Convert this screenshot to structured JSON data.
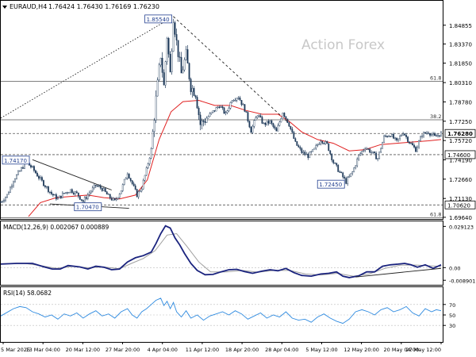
{
  "header": {
    "symbol": "EURAUD,H4",
    "ohlc": "1.76424 1.76430 1.76169 1.76230"
  },
  "watermark": "Action Forex",
  "chart_data": [
    {
      "type": "candlestick",
      "name": "price",
      "ylim": [
        1.6957,
        1.866
      ],
      "y_ticks": [
        "1.84855",
        "1.83370",
        "1.81850",
        "1.80310",
        "1.78780",
        "1.77250",
        "1.75720",
        "1.74190",
        "1.72660",
        "1.71130",
        "1.69640"
      ],
      "x_ticks": [
        "5 Mar 2025",
        "13 Mar 04:00",
        "20 Mar 12:00",
        "27 Mar 20:00",
        "4 Apr 04:00",
        "11 Apr 12:00",
        "18 Apr 20:00",
        "28 Apr 04:00",
        "5 May 12:00",
        "12 May 20:00",
        "20 May 04:00",
        "27 May 12:00"
      ],
      "close_path": [
        [
          0,
          1.7085
        ],
        [
          8,
          1.714
        ],
        [
          16,
          1.726
        ],
        [
          24,
          1.733
        ],
        [
          32,
          1.7402
        ],
        [
          40,
          1.7352
        ],
        [
          48,
          1.728
        ],
        [
          56,
          1.7215
        ],
        [
          64,
          1.715
        ],
        [
          72,
          1.711
        ],
        [
          80,
          1.7155
        ],
        [
          88,
          1.718
        ],
        [
          96,
          1.715
        ],
        [
          104,
          1.709
        ],
        [
          112,
          1.716
        ],
        [
          120,
          1.7215
        ],
        [
          128,
          1.719
        ],
        [
          136,
          1.713
        ],
        [
          144,
          1.709
        ],
        [
          152,
          1.718
        ],
        [
          160,
          1.732
        ],
        [
          166,
          1.723
        ],
        [
          172,
          1.714
        ],
        [
          178,
          1.72
        ],
        [
          184,
          1.734
        ],
        [
          190,
          1.75
        ],
        [
          196,
          1.79
        ],
        [
          202,
          1.825
        ],
        [
          206,
          1.8
        ],
        [
          210,
          1.84
        ],
        [
          214,
          1.81
        ],
        [
          218,
          1.8554
        ],
        [
          222,
          1.835
        ],
        [
          228,
          1.81
        ],
        [
          234,
          1.825
        ],
        [
          240,
          1.8
        ],
        [
          246,
          1.795
        ],
        [
          252,
          1.77
        ],
        [
          260,
          1.775
        ],
        [
          268,
          1.78
        ],
        [
          276,
          1.785
        ],
        [
          284,
          1.778
        ],
        [
          292,
          1.79
        ],
        [
          300,
          1.792
        ],
        [
          308,
          1.782
        ],
        [
          316,
          1.765
        ],
        [
          324,
          1.778
        ],
        [
          332,
          1.77
        ],
        [
          340,
          1.772
        ],
        [
          348,
          1.764
        ],
        [
          356,
          1.78
        ],
        [
          364,
          1.77
        ],
        [
          372,
          1.755
        ],
        [
          380,
          1.748
        ],
        [
          388,
          1.745
        ],
        [
          396,
          1.75
        ],
        [
          404,
          1.758
        ],
        [
          412,
          1.754
        ],
        [
          420,
          1.74
        ],
        [
          428,
          1.732
        ],
        [
          436,
          1.7245
        ],
        [
          444,
          1.732
        ],
        [
          452,
          1.745
        ],
        [
          460,
          1.752
        ],
        [
          468,
          1.748
        ],
        [
          476,
          1.743
        ],
        [
          484,
          1.76
        ],
        [
          492,
          1.762
        ],
        [
          500,
          1.756
        ],
        [
          508,
          1.764
        ],
        [
          516,
          1.756
        ],
        [
          524,
          1.75
        ],
        [
          532,
          1.762
        ],
        [
          540,
          1.764
        ],
        [
          548,
          1.76
        ],
        [
          556,
          1.7628
        ]
      ],
      "ema_path": [
        [
          35,
          1.697
        ],
        [
          50,
          1.708
        ],
        [
          70,
          1.712
        ],
        [
          90,
          1.713
        ],
        [
          110,
          1.714
        ],
        [
          130,
          1.712
        ],
        [
          150,
          1.711
        ],
        [
          170,
          1.714
        ],
        [
          185,
          1.726
        ],
        [
          200,
          1.758
        ],
        [
          215,
          1.78
        ],
        [
          230,
          1.788
        ],
        [
          250,
          1.789
        ],
        [
          270,
          1.785
        ],
        [
          290,
          1.785
        ],
        [
          310,
          1.781
        ],
        [
          330,
          1.778
        ],
        [
          350,
          1.778
        ],
        [
          365,
          1.772
        ],
        [
          380,
          1.764
        ],
        [
          400,
          1.758
        ],
        [
          420,
          1.755
        ],
        [
          440,
          1.749
        ],
        [
          460,
          1.75
        ],
        [
          480,
          1.754
        ],
        [
          500,
          1.755
        ],
        [
          520,
          1.756
        ],
        [
          540,
          1.757
        ],
        [
          556,
          1.758
        ]
      ],
      "trendlines": [
        {
          "kind": "dotted",
          "from": [
            0,
            1.775
          ],
          "to": [
            218,
            1.8554
          ]
        },
        {
          "kind": "dashed",
          "from": [
            218,
            1.8554
          ],
          "to": [
            362,
            1.772
          ]
        },
        {
          "kind": "solid",
          "from": [
            40,
            1.742
          ],
          "to": [
            140,
            1.718
          ]
        },
        {
          "kind": "solid",
          "from": [
            62,
            1.707
          ],
          "to": [
            162,
            1.7035
          ]
        }
      ],
      "levels": [
        {
          "label": "61.8",
          "value": 1.8042
        },
        {
          "label": "38.2",
          "value": 1.7736
        },
        {
          "label": "1.76280",
          "value": 1.7628
        },
        {
          "label": "1.74600",
          "value": 1.746
        },
        {
          "label": "1.70620",
          "value": 1.7062
        },
        {
          "label": "61.8",
          "value": 1.696
        }
      ],
      "annotations": [
        {
          "label": "1.85540",
          "x": 218,
          "y": 1.8554
        },
        {
          "label": "1.74170",
          "x": 32,
          "y": 1.7417
        },
        {
          "label": "1.70470",
          "x": 118,
          "y": 1.7047
        },
        {
          "label": "1.72450",
          "x": 436,
          "y": 1.7245
        }
      ],
      "current_price": "1.76280"
    },
    {
      "type": "line",
      "name": "macd",
      "title": "MACD(12,26,9) 0.002067 0.000889",
      "ylim": [
        -0.011,
        0.031
      ],
      "y_ticks": [
        "0.029123",
        "0.00",
        "-0.008901"
      ],
      "macd_path": [
        [
          0,
          0.0025
        ],
        [
          20,
          0.003
        ],
        [
          40,
          0.003
        ],
        [
          55,
          0.0005
        ],
        [
          65,
          -0.001
        ],
        [
          75,
          -0.001
        ],
        [
          85,
          0.0015
        ],
        [
          100,
          0.0005
        ],
        [
          110,
          -0.001
        ],
        [
          120,
          0.001
        ],
        [
          130,
          0.0003
        ],
        [
          140,
          -0.0015
        ],
        [
          150,
          -0.001
        ],
        [
          160,
          0.004
        ],
        [
          170,
          0.007
        ],
        [
          180,
          0.0085
        ],
        [
          190,
          0.011
        ],
        [
          196,
          0.017
        ],
        [
          202,
          0.024
        ],
        [
          208,
          0.0295
        ],
        [
          214,
          0.028
        ],
        [
          220,
          0.021
        ],
        [
          226,
          0.016
        ],
        [
          232,
          0.01
        ],
        [
          240,
          0.003
        ],
        [
          248,
          -0.002
        ],
        [
          258,
          -0.005
        ],
        [
          268,
          -0.0048
        ],
        [
          278,
          -0.003
        ],
        [
          288,
          -0.0015
        ],
        [
          298,
          -0.0012
        ],
        [
          308,
          -0.0028
        ],
        [
          318,
          -0.004
        ],
        [
          330,
          -0.0025
        ],
        [
          340,
          -0.0015
        ],
        [
          350,
          -0.0022
        ],
        [
          360,
          -0.0005
        ],
        [
          370,
          -0.0035
        ],
        [
          380,
          -0.0055
        ],
        [
          392,
          -0.006
        ],
        [
          404,
          -0.0045
        ],
        [
          414,
          -0.004
        ],
        [
          424,
          -0.003
        ],
        [
          432,
          -0.006
        ],
        [
          440,
          -0.007
        ],
        [
          452,
          -0.0058
        ],
        [
          462,
          -0.003
        ],
        [
          472,
          -0.003
        ],
        [
          482,
          0.001
        ],
        [
          492,
          0.002
        ],
        [
          502,
          0.0025
        ],
        [
          510,
          0.003
        ],
        [
          518,
          0.002
        ],
        [
          526,
          0.0003
        ],
        [
          536,
          0.002
        ],
        [
          546,
          -0.0005
        ],
        [
          556,
          0.002
        ]
      ],
      "signal_path": [
        [
          0,
          0.0028
        ],
        [
          30,
          0.003
        ],
        [
          50,
          0.0015
        ],
        [
          70,
          -0.0005
        ],
        [
          90,
          0.0008
        ],
        [
          110,
          0.0
        ],
        [
          130,
          0.0005
        ],
        [
          150,
          -0.0008
        ],
        [
          165,
          0.003
        ],
        [
          180,
          0.0065
        ],
        [
          195,
          0.012
        ],
        [
          210,
          0.023
        ],
        [
          222,
          0.024
        ],
        [
          235,
          0.015
        ],
        [
          250,
          0.004
        ],
        [
          265,
          -0.003
        ],
        [
          285,
          -0.003
        ],
        [
          305,
          -0.002
        ],
        [
          325,
          -0.0032
        ],
        [
          345,
          -0.002
        ],
        [
          365,
          -0.002
        ],
        [
          385,
          -0.0045
        ],
        [
          405,
          -0.0052
        ],
        [
          425,
          -0.004
        ],
        [
          445,
          -0.006
        ],
        [
          465,
          -0.0045
        ],
        [
          485,
          -0.0005
        ],
        [
          505,
          0.0018
        ],
        [
          525,
          0.0018
        ],
        [
          545,
          0.0012
        ],
        [
          556,
          0.0009
        ]
      ],
      "trendline": {
        "from": [
          448,
          -0.0066
        ],
        "to": [
          556,
          -0.0005
        ]
      }
    },
    {
      "type": "line",
      "name": "rsi",
      "title": "RSI(14) 58.0682",
      "ylim": [
        0,
        100
      ],
      "y_ticks": [
        "70",
        "50",
        "30"
      ],
      "rsi_path": [
        [
          0,
          48
        ],
        [
          8,
          55
        ],
        [
          16,
          62
        ],
        [
          24,
          66
        ],
        [
          32,
          64
        ],
        [
          40,
          56
        ],
        [
          48,
          52
        ],
        [
          56,
          46
        ],
        [
          64,
          50
        ],
        [
          72,
          42
        ],
        [
          80,
          52
        ],
        [
          88,
          48
        ],
        [
          96,
          54
        ],
        [
          104,
          44
        ],
        [
          112,
          52
        ],
        [
          120,
          58
        ],
        [
          128,
          48
        ],
        [
          136,
          52
        ],
        [
          144,
          44
        ],
        [
          152,
          56
        ],
        [
          160,
          62
        ],
        [
          166,
          50
        ],
        [
          172,
          44
        ],
        [
          178,
          56
        ],
        [
          184,
          62
        ],
        [
          190,
          70
        ],
        [
          196,
          78
        ],
        [
          202,
          82
        ],
        [
          206,
          68
        ],
        [
          210,
          76
        ],
        [
          214,
          62
        ],
        [
          218,
          74
        ],
        [
          222,
          56
        ],
        [
          228,
          46
        ],
        [
          234,
          58
        ],
        [
          240,
          44
        ],
        [
          248,
          50
        ],
        [
          256,
          40
        ],
        [
          264,
          48
        ],
        [
          272,
          52
        ],
        [
          280,
          56
        ],
        [
          288,
          50
        ],
        [
          296,
          58
        ],
        [
          304,
          52
        ],
        [
          312,
          42
        ],
        [
          320,
          48
        ],
        [
          328,
          54
        ],
        [
          336,
          44
        ],
        [
          344,
          50
        ],
        [
          352,
          46
        ],
        [
          360,
          56
        ],
        [
          368,
          44
        ],
        [
          376,
          40
        ],
        [
          384,
          42
        ],
        [
          392,
          36
        ],
        [
          400,
          46
        ],
        [
          408,
          52
        ],
        [
          416,
          44
        ],
        [
          424,
          38
        ],
        [
          432,
          34
        ],
        [
          440,
          42
        ],
        [
          448,
          56
        ],
        [
          456,
          60
        ],
        [
          464,
          56
        ],
        [
          472,
          50
        ],
        [
          480,
          60
        ],
        [
          488,
          64
        ],
        [
          496,
          56
        ],
        [
          504,
          60
        ],
        [
          512,
          66
        ],
        [
          520,
          54
        ],
        [
          528,
          48
        ],
        [
          536,
          62
        ],
        [
          544,
          56
        ],
        [
          550,
          60
        ],
        [
          556,
          58
        ]
      ]
    }
  ]
}
